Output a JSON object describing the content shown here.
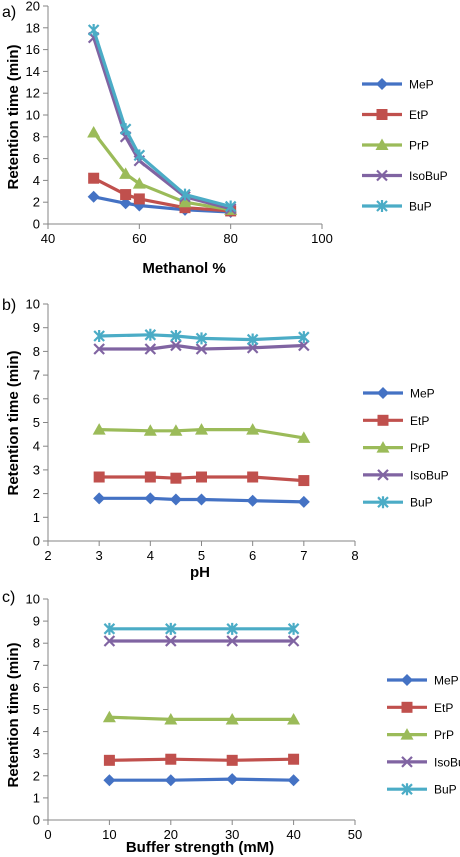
{
  "chart_data": [
    {
      "type": "line",
      "panel_label": "a)",
      "xlabel": "Methanol %",
      "ylabel": "Retention time (min)",
      "xlim": [
        40,
        100
      ],
      "ylim": [
        0,
        20
      ],
      "xticks": [
        "40",
        "60",
        "80",
        "100"
      ],
      "yticks": [
        "0",
        "2",
        "4",
        "6",
        "8",
        "10",
        "12",
        "14",
        "16",
        "18",
        "20"
      ],
      "grid": false,
      "legend_position": "right",
      "x": [
        50,
        57,
        60,
        70,
        80
      ],
      "series": [
        {
          "name": "MeP",
          "color": "#4472C4",
          "marker": "diamond",
          "values": [
            2.5,
            1.9,
            1.7,
            1.3,
            1.1
          ]
        },
        {
          "name": "EtP",
          "color": "#C0504D",
          "marker": "square",
          "values": [
            4.2,
            2.7,
            2.3,
            1.5,
            1.2
          ]
        },
        {
          "name": "PrP",
          "color": "#9BBB59",
          "marker": "triangle",
          "values": [
            8.4,
            4.6,
            3.7,
            2.0,
            1.3
          ]
        },
        {
          "name": "IsoBuP",
          "color": "#8064A2",
          "marker": "x",
          "values": [
            17.1,
            8.0,
            5.8,
            2.5,
            1.4
          ]
        },
        {
          "name": "BuP",
          "color": "#4BACC6",
          "marker": "star",
          "values": [
            17.8,
            8.7,
            6.3,
            2.7,
            1.6
          ]
        }
      ]
    },
    {
      "type": "line",
      "panel_label": "b)",
      "xlabel": "pH",
      "ylabel": "Retention time (min)",
      "xlim": [
        2,
        8
      ],
      "ylim": [
        0,
        10
      ],
      "xticks": [
        "2",
        "3",
        "4",
        "5",
        "6",
        "7",
        "8"
      ],
      "yticks": [
        "0",
        "1",
        "2",
        "3",
        "4",
        "5",
        "6",
        "7",
        "8",
        "9",
        "10"
      ],
      "grid": false,
      "legend_position": "right",
      "x": [
        3,
        4,
        4.5,
        5,
        6,
        7
      ],
      "series": [
        {
          "name": "MeP",
          "color": "#4472C4",
          "marker": "diamond",
          "values": [
            1.8,
            1.8,
            1.75,
            1.75,
            1.7,
            1.65
          ]
        },
        {
          "name": "EtP",
          "color": "#C0504D",
          "marker": "square",
          "values": [
            2.7,
            2.7,
            2.65,
            2.7,
            2.7,
            2.55
          ]
        },
        {
          "name": "PrP",
          "color": "#9BBB59",
          "marker": "triangle",
          "values": [
            4.7,
            4.65,
            4.65,
            4.7,
            4.7,
            4.35
          ]
        },
        {
          "name": "IsoBuP",
          "color": "#8064A2",
          "marker": "x",
          "values": [
            8.1,
            8.1,
            8.25,
            8.1,
            8.15,
            8.25
          ]
        },
        {
          "name": "BuP",
          "color": "#4BACC6",
          "marker": "star",
          "values": [
            8.65,
            8.7,
            8.65,
            8.55,
            8.5,
            8.6
          ]
        }
      ]
    },
    {
      "type": "line",
      "panel_label": "c)",
      "xlabel": "Buffer strength (mM)",
      "ylabel": "Retention time (min)",
      "xlim": [
        0,
        50
      ],
      "ylim": [
        0,
        10
      ],
      "xticks": [
        "0",
        "10",
        "20",
        "30",
        "40",
        "50"
      ],
      "yticks": [
        "0",
        "1",
        "2",
        "3",
        "4",
        "5",
        "6",
        "7",
        "8",
        "9",
        "10"
      ],
      "grid": false,
      "legend_position": "right",
      "x": [
        10,
        20,
        30,
        40
      ],
      "series": [
        {
          "name": "MeP",
          "color": "#4472C4",
          "marker": "diamond",
          "values": [
            1.8,
            1.8,
            1.85,
            1.8
          ]
        },
        {
          "name": "EtP",
          "color": "#C0504D",
          "marker": "square",
          "values": [
            2.7,
            2.75,
            2.7,
            2.75
          ]
        },
        {
          "name": "PrP",
          "color": "#9BBB59",
          "marker": "triangle",
          "values": [
            4.65,
            4.55,
            4.55,
            4.55
          ]
        },
        {
          "name": "IsoBuP",
          "color": "#8064A2",
          "marker": "x",
          "values": [
            8.1,
            8.1,
            8.1,
            8.1
          ]
        },
        {
          "name": "BuP",
          "color": "#4BACC6",
          "marker": "star",
          "values": [
            8.65,
            8.65,
            8.65,
            8.65
          ]
        }
      ]
    }
  ]
}
